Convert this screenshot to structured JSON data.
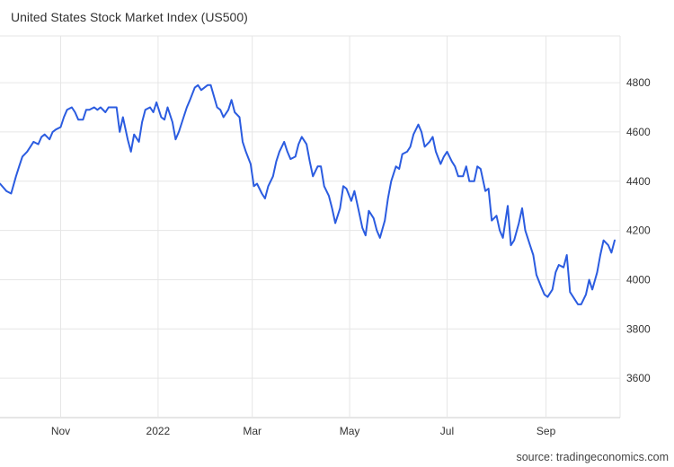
{
  "title": "United States Stock Market Index (US500)",
  "source": "source: tradingeconomics.com",
  "colors": {
    "line": "#2b5ce0",
    "grid": "#e6e6e6",
    "axis": "#cccccc"
  },
  "chart_data": {
    "type": "line",
    "title": "United States Stock Market Index (US500)",
    "grid": true,
    "ylim": [
      3440,
      4990
    ],
    "yticks": [
      3600,
      3800,
      4000,
      4200,
      4400,
      4600,
      4800
    ],
    "xlim": [
      "2021-09-24",
      "2022-10-14"
    ],
    "xticks": [
      {
        "label": "Nov",
        "date": "2021-11-01"
      },
      {
        "label": "2022",
        "date": "2022-01-01"
      },
      {
        "label": "Mar",
        "date": "2022-03-01"
      },
      {
        "label": "May",
        "date": "2022-05-01"
      },
      {
        "label": "Jul",
        "date": "2022-07-01"
      },
      {
        "label": "Sep",
        "date": "2022-09-01"
      }
    ],
    "series": [
      {
        "points": [
          [
            "2021-09-24",
            4390
          ],
          [
            "2021-09-28",
            4360
          ],
          [
            "2021-10-01",
            4350
          ],
          [
            "2021-10-04",
            4420
          ],
          [
            "2021-10-06",
            4460
          ],
          [
            "2021-10-08",
            4500
          ],
          [
            "2021-10-11",
            4520
          ],
          [
            "2021-10-13",
            4540
          ],
          [
            "2021-10-15",
            4560
          ],
          [
            "2021-10-18",
            4550
          ],
          [
            "2021-10-20",
            4580
          ],
          [
            "2021-10-22",
            4590
          ],
          [
            "2021-10-25",
            4570
          ],
          [
            "2021-10-27",
            4600
          ],
          [
            "2021-10-29",
            4610
          ],
          [
            "2021-11-01",
            4620
          ],
          [
            "2021-11-03",
            4660
          ],
          [
            "2021-11-05",
            4690
          ],
          [
            "2021-11-08",
            4700
          ],
          [
            "2021-11-10",
            4680
          ],
          [
            "2021-11-12",
            4650
          ],
          [
            "2021-11-15",
            4650
          ],
          [
            "2021-11-17",
            4690
          ],
          [
            "2021-11-19",
            4690
          ],
          [
            "2021-11-22",
            4700
          ],
          [
            "2021-11-24",
            4690
          ],
          [
            "2021-11-26",
            4700
          ],
          [
            "2021-11-29",
            4680
          ],
          [
            "2021-12-01",
            4700
          ],
          [
            "2021-12-03",
            4700
          ],
          [
            "2021-12-06",
            4700
          ],
          [
            "2021-12-08",
            4600
          ],
          [
            "2021-12-10",
            4660
          ],
          [
            "2021-12-13",
            4570
          ],
          [
            "2021-12-15",
            4520
          ],
          [
            "2021-12-17",
            4590
          ],
          [
            "2021-12-20",
            4560
          ],
          [
            "2021-12-22",
            4640
          ],
          [
            "2021-12-24",
            4690
          ],
          [
            "2021-12-27",
            4700
          ],
          [
            "2021-12-29",
            4680
          ],
          [
            "2021-12-31",
            4720
          ],
          [
            "2022-01-03",
            4660
          ],
          [
            "2022-01-05",
            4650
          ],
          [
            "2022-01-07",
            4700
          ],
          [
            "2022-01-10",
            4640
          ],
          [
            "2022-01-12",
            4570
          ],
          [
            "2022-01-14",
            4600
          ],
          [
            "2022-01-17",
            4660
          ],
          [
            "2022-01-19",
            4700
          ],
          [
            "2022-01-21",
            4730
          ],
          [
            "2022-01-24",
            4780
          ],
          [
            "2022-01-26",
            4790
          ],
          [
            "2022-01-28",
            4770
          ],
          [
            "2022-02-01",
            4790
          ],
          [
            "2022-02-03",
            4790
          ],
          [
            "2022-02-07",
            4700
          ],
          [
            "2022-02-09",
            4690
          ],
          [
            "2022-02-11",
            4660
          ],
          [
            "2022-02-14",
            4690
          ],
          [
            "2022-02-16",
            4730
          ],
          [
            "2022-02-18",
            4680
          ],
          [
            "2022-02-21",
            4660
          ],
          [
            "2022-02-23",
            4560
          ],
          [
            "2022-02-25",
            4520
          ],
          [
            "2022-02-28",
            4470
          ],
          [
            "2022-03-02",
            4380
          ],
          [
            "2022-03-04",
            4390
          ],
          [
            "2022-03-07",
            4350
          ],
          [
            "2022-03-09",
            4330
          ],
          [
            "2022-03-11",
            4380
          ],
          [
            "2022-03-14",
            4420
          ],
          [
            "2022-03-16",
            4480
          ],
          [
            "2022-03-18",
            4520
          ],
          [
            "2022-03-21",
            4560
          ],
          [
            "2022-03-23",
            4520
          ],
          [
            "2022-03-25",
            4490
          ],
          [
            "2022-03-28",
            4500
          ],
          [
            "2022-03-30",
            4550
          ],
          [
            "2022-04-01",
            4580
          ],
          [
            "2022-04-04",
            4550
          ],
          [
            "2022-04-06",
            4480
          ],
          [
            "2022-04-08",
            4420
          ],
          [
            "2022-04-11",
            4460
          ],
          [
            "2022-04-13",
            4460
          ],
          [
            "2022-04-15",
            4380
          ],
          [
            "2022-04-18",
            4340
          ],
          [
            "2022-04-20",
            4290
          ],
          [
            "2022-04-22",
            4230
          ],
          [
            "2022-04-25",
            4290
          ],
          [
            "2022-04-27",
            4380
          ],
          [
            "2022-04-29",
            4370
          ],
          [
            "2022-05-02",
            4320
          ],
          [
            "2022-05-04",
            4360
          ],
          [
            "2022-05-06",
            4300
          ],
          [
            "2022-05-09",
            4210
          ],
          [
            "2022-05-11",
            4180
          ],
          [
            "2022-05-13",
            4280
          ],
          [
            "2022-05-16",
            4250
          ],
          [
            "2022-05-18",
            4200
          ],
          [
            "2022-05-20",
            4170
          ],
          [
            "2022-05-23",
            4240
          ],
          [
            "2022-05-25",
            4330
          ],
          [
            "2022-05-27",
            4400
          ],
          [
            "2022-05-30",
            4460
          ],
          [
            "2022-06-01",
            4450
          ],
          [
            "2022-06-03",
            4510
          ],
          [
            "2022-06-06",
            4520
          ],
          [
            "2022-06-08",
            4540
          ],
          [
            "2022-06-10",
            4590
          ],
          [
            "2022-06-13",
            4630
          ],
          [
            "2022-06-15",
            4600
          ],
          [
            "2022-06-17",
            4540
          ],
          [
            "2022-06-20",
            4560
          ],
          [
            "2022-06-22",
            4580
          ],
          [
            "2022-06-24",
            4520
          ],
          [
            "2022-06-27",
            4470
          ],
          [
            "2022-06-29",
            4500
          ],
          [
            "2022-07-01",
            4520
          ],
          [
            "2022-07-04",
            4480
          ],
          [
            "2022-07-06",
            4460
          ],
          [
            "2022-07-08",
            4420
          ],
          [
            "2022-07-11",
            4420
          ],
          [
            "2022-07-13",
            4460
          ],
          [
            "2022-07-15",
            4400
          ],
          [
            "2022-07-18",
            4400
          ],
          [
            "2022-07-20",
            4460
          ],
          [
            "2022-07-22",
            4450
          ],
          [
            "2022-07-25",
            4360
          ],
          [
            "2022-07-27",
            4370
          ],
          [
            "2022-07-29",
            4240
          ],
          [
            "2022-08-01",
            4260
          ],
          [
            "2022-08-03",
            4200
          ],
          [
            "2022-08-05",
            4170
          ],
          [
            "2022-08-08",
            4300
          ],
          [
            "2022-08-10",
            4140
          ],
          [
            "2022-08-12",
            4160
          ],
          [
            "2022-08-15",
            4230
          ],
          [
            "2022-08-17",
            4290
          ],
          [
            "2022-08-19",
            4200
          ],
          [
            "2022-08-22",
            4140
          ],
          [
            "2022-08-24",
            4100
          ],
          [
            "2022-08-26",
            4020
          ],
          [
            "2022-08-29",
            3970
          ],
          [
            "2022-08-31",
            3940
          ],
          [
            "2022-09-02",
            3930
          ],
          [
            "2022-09-05",
            3960
          ],
          [
            "2022-09-07",
            4030
          ],
          [
            "2022-09-09",
            4060
          ],
          [
            "2022-09-12",
            4050
          ],
          [
            "2022-09-14",
            4100
          ],
          [
            "2022-09-16",
            3950
          ],
          [
            "2022-09-19",
            3920
          ],
          [
            "2022-09-21",
            3900
          ],
          [
            "2022-09-23",
            3900
          ],
          [
            "2022-09-26",
            3940
          ],
          [
            "2022-09-28",
            4000
          ],
          [
            "2022-09-30",
            3960
          ],
          [
            "2022-10-03",
            4030
          ],
          [
            "2022-10-05",
            4100
          ],
          [
            "2022-10-07",
            4160
          ],
          [
            "2022-10-10",
            4140
          ],
          [
            "2022-10-12",
            4110
          ],
          [
            "2022-10-14",
            4160
          ]
        ]
      }
    ]
  }
}
